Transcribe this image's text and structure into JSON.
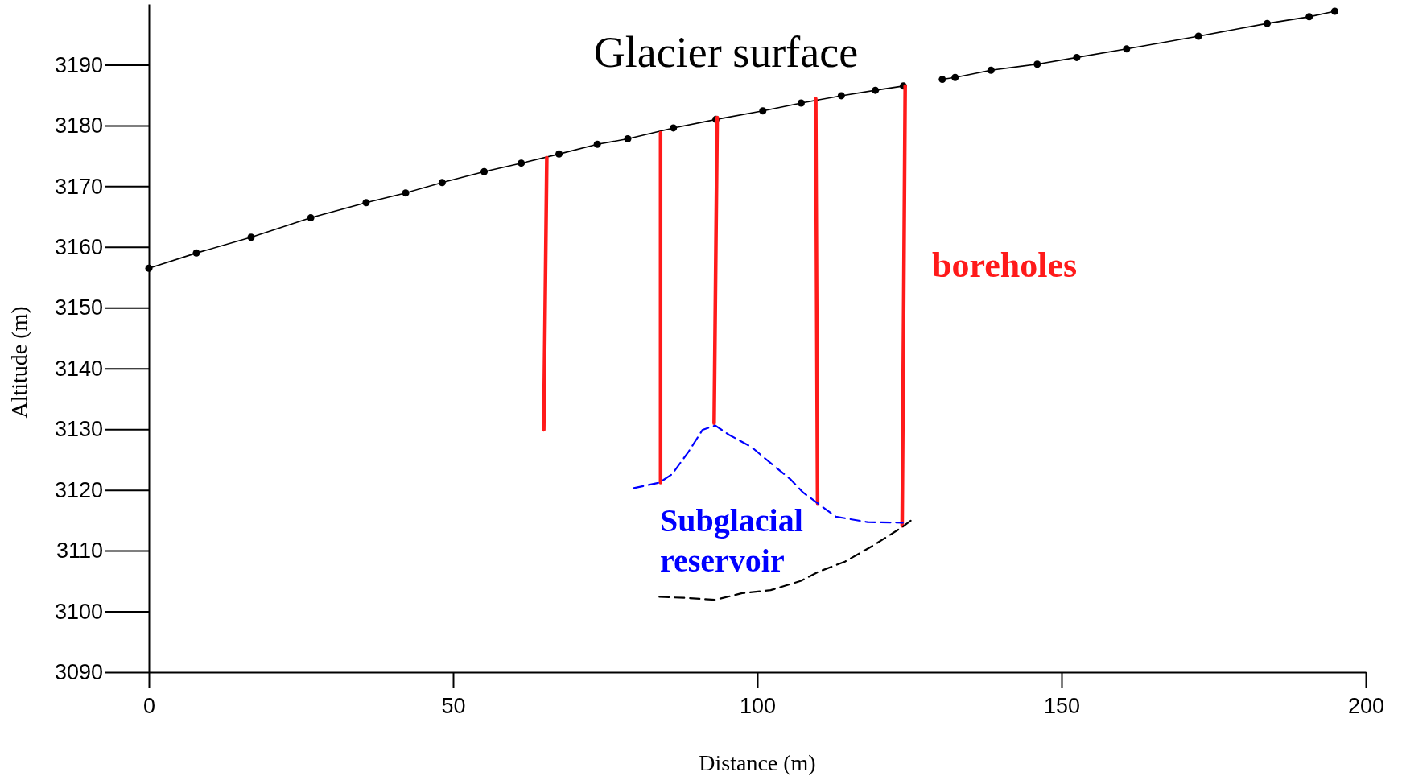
{
  "chart_data": {
    "type": "line",
    "xlabel": "Distance (m)",
    "ylabel": "Altitude (m)",
    "xlim": [
      0,
      200
    ],
    "ylim": [
      3090,
      3200
    ],
    "xticks": [
      0,
      50,
      100,
      150,
      200
    ],
    "yticks": [
      3090,
      3100,
      3110,
      3120,
      3130,
      3140,
      3150,
      3160,
      3170,
      3180,
      3190
    ],
    "grid": false,
    "series": [
      {
        "name": "Glacier surface",
        "color": "#000000",
        "marker": "circle",
        "line_style": "solid",
        "x": [
          0,
          7.8,
          16.8,
          26.6,
          35.7,
          42.2,
          48.2,
          55.1,
          61.2,
          67.4,
          73.7,
          78.7,
          86.2,
          93.2,
          100.9,
          107.2,
          113.8,
          119.4,
          124,
          127,
          130.4,
          132.5,
          138.4,
          146,
          152.5,
          160.7,
          172.5,
          183.8,
          190.7,
          194.9
        ],
        "values": [
          3156.5,
          3159,
          3161.6,
          3164.8,
          3167.3,
          3168.9,
          3170.6,
          3172.4,
          3173.8,
          3175.3,
          3176.9,
          3177.8,
          3179.6,
          3181,
          3182.4,
          3183.7,
          3184.9,
          3185.8,
          3186.5,
          null,
          3187.6,
          3187.9,
          3189.1,
          3190.1,
          3191.2,
          3192.6,
          3194.7,
          3196.8,
          3197.9,
          3198.8
        ]
      },
      {
        "name": "boreholes",
        "color": "#ff1a1a",
        "marker": "none",
        "line_style": "solid",
        "x": [
          65.4,
          64.9,
          75,
          84.1,
          84.1,
          88,
          93.4,
          92.9,
          100,
          109.6,
          109.9,
          117,
          124.3,
          123.8
        ],
        "values": [
          3174.7,
          3129.9,
          null,
          3178.8,
          3121.2,
          null,
          3181.3,
          3131,
          null,
          3184.4,
          3117.8,
          null,
          3186.5,
          3114.1
        ]
      },
      {
        "name": "Subglacial reservoir",
        "color": "#0000ff",
        "marker": "none",
        "line_style": "dashed",
        "x": [
          79.7,
          83.9,
          86,
          88.7,
          91,
          93.1,
          95.3,
          99,
          102.2,
          105.4,
          107.5,
          109.9,
          112.9,
          118.1,
          123.9
        ],
        "values": [
          3120.3,
          3121.2,
          3122.6,
          3126.3,
          3129.9,
          3130.6,
          3129.1,
          3127.1,
          3124.4,
          3121.8,
          3119.6,
          3117.8,
          3115.6,
          3114.7,
          3114.6
        ]
      },
      {
        "color": "#000000",
        "marker": "none",
        "line_style": "dashed",
        "x": [
          83.9,
          88.7,
          93.1,
          97.5,
          102.2,
          107.1,
          110,
          114.4,
          118.8,
          123.7,
          125.7
        ],
        "values": [
          3102.4,
          3102.2,
          3101.9,
          3103,
          3103.5,
          3105,
          3106.5,
          3108.2,
          3110.7,
          3113.8,
          3115.3
        ]
      }
    ]
  }
}
